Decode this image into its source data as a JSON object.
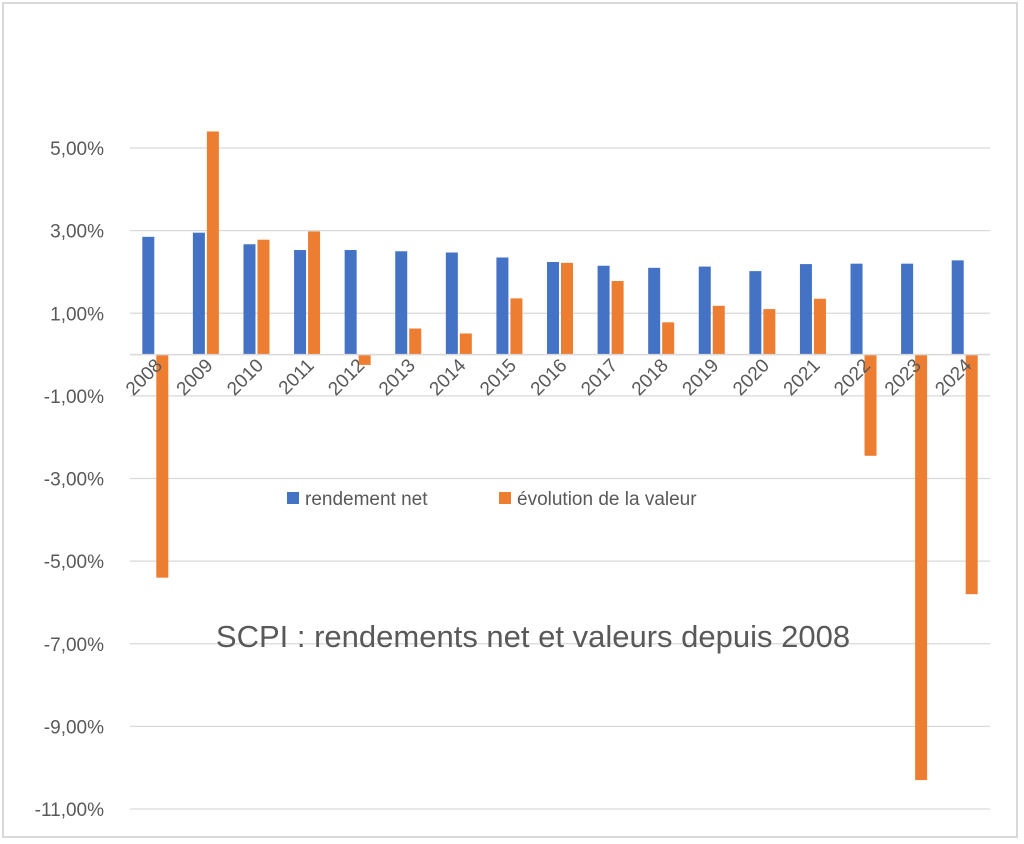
{
  "chart_data": {
    "type": "bar",
    "title": "SCPI : rendements net et valeurs depuis 2008",
    "xlabel": "",
    "ylabel": "",
    "categories": [
      "2008",
      "2009",
      "2010",
      "2011",
      "2012",
      "2013",
      "2014",
      "2015",
      "2016",
      "2017",
      "2018",
      "2019",
      "2020",
      "2021",
      "2022",
      "2023",
      "2024"
    ],
    "series": [
      {
        "name": "rendement net",
        "color": "#4472c4",
        "values": [
          2.85,
          2.95,
          2.67,
          2.53,
          2.53,
          2.5,
          2.47,
          2.35,
          2.24,
          2.15,
          2.1,
          2.13,
          2.02,
          2.19,
          2.2,
          2.2,
          2.28
        ]
      },
      {
        "name": "évolution de la valeur",
        "color": "#ed7d31",
        "values": [
          -5.4,
          5.4,
          2.78,
          2.98,
          -0.25,
          0.63,
          0.51,
          1.36,
          2.22,
          1.78,
          0.78,
          1.18,
          1.1,
          1.35,
          -2.45,
          -10.3,
          -5.8
        ]
      }
    ],
    "y_ticks": [
      "5,00%",
      "3,00%",
      "1,00%",
      "-1,00%",
      "-3,00%",
      "-5,00%",
      "-7,00%",
      "-9,00%",
      "-11,00%"
    ],
    "ylim": [
      -11,
      5
    ],
    "grid": true,
    "legend_position": "inside-center"
  }
}
